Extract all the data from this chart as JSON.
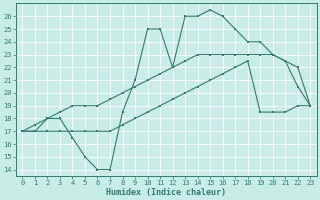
{
  "xlabel": "Humidex (Indice chaleur)",
  "xlim": [
    -0.5,
    23.5
  ],
  "ylim": [
    13.5,
    27.0
  ],
  "yticks": [
    14,
    15,
    16,
    17,
    18,
    19,
    20,
    21,
    22,
    23,
    24,
    25,
    26
  ],
  "xticks": [
    0,
    1,
    2,
    3,
    4,
    5,
    6,
    7,
    8,
    9,
    10,
    11,
    12,
    13,
    14,
    15,
    16,
    17,
    18,
    19,
    20,
    21,
    22,
    23
  ],
  "bg_color": "#c8ece6",
  "line_color": "#2e7d6e",
  "grid_color": "#ffffff",
  "line1_x": [
    0,
    1,
    2,
    3,
    4,
    5,
    6,
    7,
    8,
    9,
    10,
    11,
    12,
    13,
    14,
    15,
    16,
    17,
    18,
    19,
    20,
    21,
    22,
    23
  ],
  "line1_y": [
    17,
    17,
    18,
    18,
    16.5,
    15,
    14,
    14,
    18.5,
    21,
    25,
    25,
    22,
    26,
    26,
    26.5,
    26,
    25,
    24,
    24,
    23,
    22.5,
    20.5,
    19
  ],
  "line2_x": [
    0,
    1,
    2,
    3,
    4,
    5,
    6,
    7,
    8,
    9,
    10,
    11,
    12,
    13,
    14,
    15,
    16,
    17,
    18,
    19,
    20,
    21,
    22,
    23
  ],
  "line2_y": [
    17,
    17.5,
    18,
    18.5,
    19,
    19,
    19,
    19.5,
    20,
    20.5,
    21,
    21.5,
    22,
    22.5,
    23,
    23,
    23,
    23,
    23,
    23,
    23,
    22.5,
    22,
    19
  ],
  "line3_x": [
    0,
    1,
    2,
    3,
    4,
    5,
    6,
    7,
    8,
    9,
    10,
    11,
    12,
    13,
    14,
    15,
    16,
    17,
    18,
    19,
    20,
    21,
    22,
    23
  ],
  "line3_y": [
    17,
    17,
    17,
    17,
    17,
    17,
    17,
    17,
    17.5,
    18,
    18.5,
    19,
    19.5,
    20,
    20.5,
    21,
    21.5,
    22,
    22.5,
    18.5,
    18.5,
    18.5,
    19,
    19
  ]
}
